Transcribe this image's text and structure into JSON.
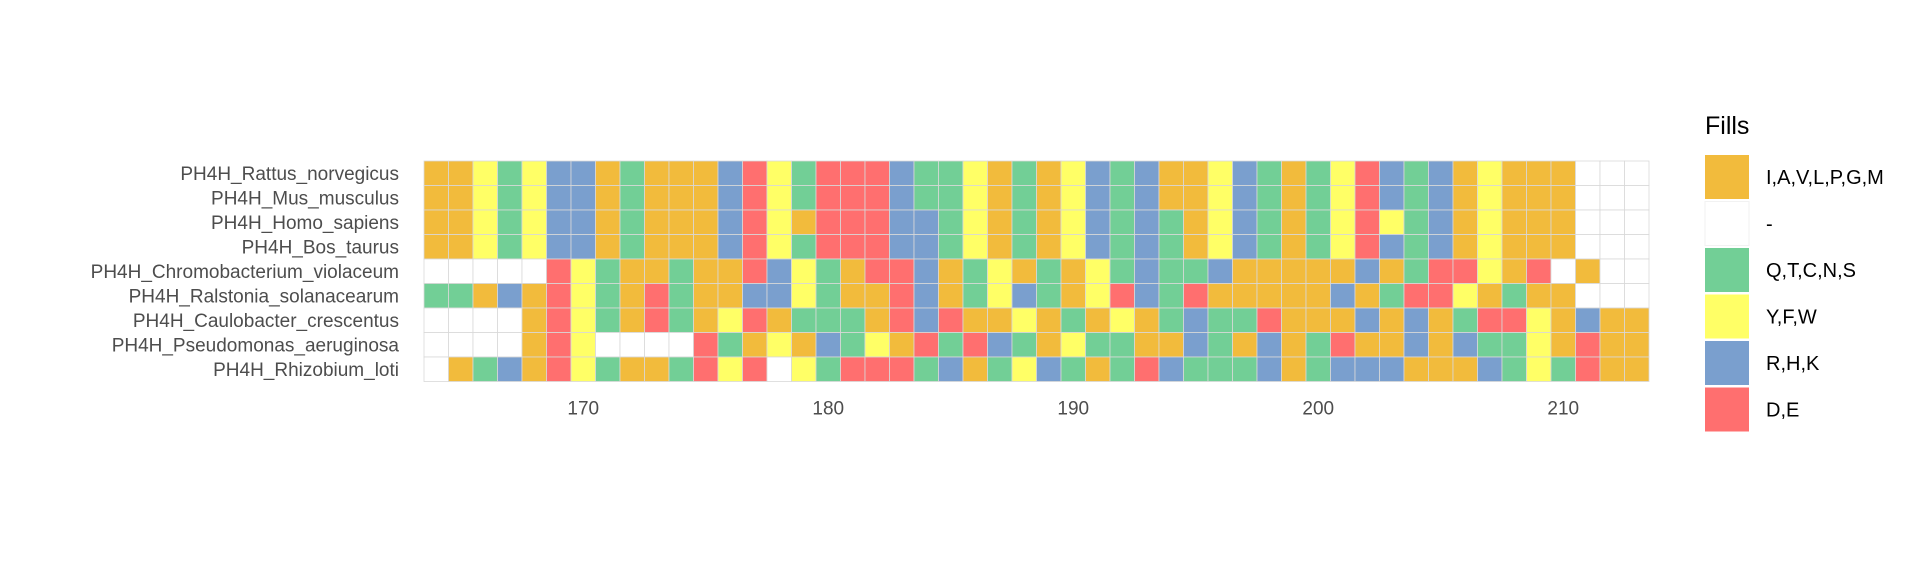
{
  "chart_data": {
    "type": "heatmap",
    "title": "",
    "xlabel": "",
    "ylabel": "",
    "x_start": 164,
    "xlim": [
      163.5,
      213.5
    ],
    "x_ticks": [
      170,
      180,
      190,
      200,
      210
    ],
    "grid": true,
    "legend_position": "right",
    "legend_title": "Fills",
    "categories": [
      {
        "key": "A",
        "label": "I,A,V,L,P,G,M",
        "color": "#F2BB3C"
      },
      {
        "key": "-",
        "label": "-",
        "color": "#FFFFFF"
      },
      {
        "key": "Q",
        "label": "Q,T,C,N,S",
        "color": "#72CF96"
      },
      {
        "key": "Y",
        "label": "Y,F,W",
        "color": "#FFFF66"
      },
      {
        "key": "R",
        "label": "R,H,K",
        "color": "#7A9FCE"
      },
      {
        "key": "D",
        "label": "D,E",
        "color": "#FF6F6F"
      }
    ],
    "rows": [
      {
        "name": "PH4H_Rattus_norvegicus",
        "codes": "AAYQYRRAQAAARDYQDDDRQQYAQAYRQRAAYRQAQYDRQRAYAAA"
      },
      {
        "name": "PH4H_Mus_musculus",
        "codes": "AAYQYRRAQAAARDYQDDDRQQYAQAYRQRAAYRQAQYDRQRAYAAA"
      },
      {
        "name": "PH4H_Homo_sapiens",
        "codes": "AAYQYRRAQAAARDYADDDRRQYAQAYRQRQAYRQAQYDYQRAYAAA"
      },
      {
        "name": "PH4H_Bos_taurus",
        "codes": "AAYQYRRAQAAARDYQDDDRRQYAQAYRQRQAYRQAQYDRQRAYAAA"
      },
      {
        "name": "PH4H_Chromobacterium_violaceum",
        "codes": "-----DYQAAQAADRYQADDRAQYAQAYQRQQRAAAAARAQDDYAD-A---"
      },
      {
        "name": "PH4H_Ralstonia_solanacearum",
        "codes": "QQARADYQADQAARRYQAADRAQYRQAYDRQDAAAAARAQDDYAQAA---"
      },
      {
        "name": "PH4H_Caulobacter_crescentus",
        "codes": "----ADYQADQAYDAQQQADRDAAYAQAYAQRQQDAAARARAQDDYARAA---"
      },
      {
        "name": "PH4H_Pseudomonas_aeruginosa",
        "codes": "----ADY----DQAYARQYADQDRQAYQQAARQARAQDAARARQQYADAA---"
      },
      {
        "name": "PH4H_Rhizobium_loti",
        "codes": "-AQRADYQAAQDYD-YQDDDQRAQYRQAQDRQQQRAQRRRAAARQYQDAA---"
      }
    ]
  }
}
